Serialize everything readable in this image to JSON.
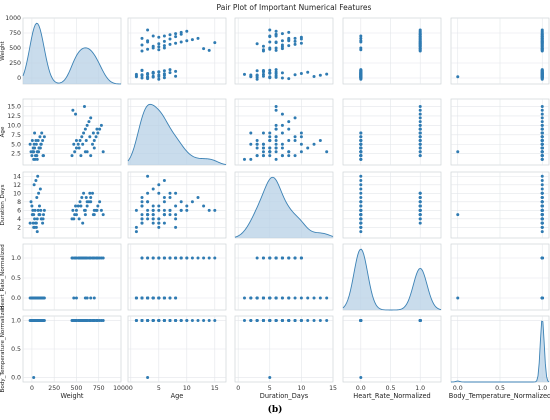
{
  "figure": {
    "title": "Pair Plot of Important Numerical Features",
    "caption": "(b)"
  },
  "colors": {
    "point": "#2f7bb2",
    "kde_line": "#3c82b5",
    "kde_fill": "#b7d0e5"
  },
  "chart_data": {
    "type": "scatter",
    "subtype": "pair-plot",
    "grid": true,
    "diagonal": "kde",
    "variables": [
      {
        "name": "Weight",
        "label": "Weight",
        "range": [
          -100,
          1000
        ],
        "ticks": [
          0,
          250,
          500,
          750,
          1000
        ]
      },
      {
        "name": "Age",
        "label": "Age",
        "range": [
          -0.5,
          17
        ],
        "ticks": [
          0,
          5,
          10,
          15
        ],
        "yticks": [
          2.5,
          5.0,
          7.5,
          10.0,
          12.5,
          15.0
        ]
      },
      {
        "name": "Duration_Days",
        "label": "Duration_Days",
        "range": [
          -0.5,
          15
        ],
        "ticks": [
          0,
          5,
          10,
          15
        ],
        "yticks": [
          2,
          4,
          6,
          8,
          10,
          12,
          14
        ]
      },
      {
        "name": "Heart_Rate_Normalized",
        "label": "Heart_Rate_Normalized",
        "range": [
          -0.3,
          1.35
        ],
        "ticks": [
          0.0,
          0.5,
          1.0
        ],
        "yticks": [
          0.0,
          0.5,
          1.0
        ]
      },
      {
        "name": "Body_Temperature_Normalized",
        "label": "Body_Temperature_Normalized",
        "range": [
          -0.08,
          1.08
        ],
        "ticks": [
          0.0,
          0.5,
          1.0
        ],
        "yticks": [
          0.0,
          0.5,
          1.0
        ]
      }
    ],
    "records": [
      [
        20,
        1,
        2,
        0,
        1
      ],
      [
        40,
        2,
        3,
        0,
        1
      ],
      [
        60,
        3,
        4,
        0,
        1
      ],
      [
        80,
        4,
        5,
        0,
        1
      ],
      [
        100,
        5,
        6,
        0,
        1
      ],
      [
        120,
        6,
        3,
        0,
        1
      ],
      [
        0,
        2,
        7,
        0,
        1
      ],
      [
        10,
        3,
        5,
        0,
        1
      ],
      [
        30,
        4,
        4,
        0,
        1
      ],
      [
        50,
        5,
        2,
        0,
        1
      ],
      [
        70,
        6,
        6,
        0,
        1
      ],
      [
        90,
        7,
        5,
        0,
        1
      ],
      [
        110,
        8,
        4,
        0,
        1
      ],
      [
        130,
        2,
        5,
        0,
        1
      ],
      [
        -10,
        3,
        8,
        0,
        1
      ],
      [
        15,
        4,
        3,
        0,
        1
      ],
      [
        35,
        1,
        6,
        0,
        1
      ],
      [
        55,
        2,
        9,
        0,
        1
      ],
      [
        75,
        3,
        10,
        0,
        1
      ],
      [
        95,
        4,
        11,
        0,
        1
      ],
      [
        25,
        5,
        12,
        0,
        1
      ],
      [
        45,
        6,
        13,
        0,
        1
      ],
      [
        65,
        3,
        14,
        0,
        1
      ],
      [
        85,
        4,
        7,
        0,
        1
      ],
      [
        105,
        5,
        4,
        0,
        1
      ],
      [
        5,
        6,
        5,
        0,
        1
      ],
      [
        125,
        2,
        4,
        0,
        1
      ],
      [
        140,
        7,
        6,
        0,
        1
      ],
      [
        -20,
        5,
        3,
        0,
        1
      ],
      [
        60,
        1,
        1,
        0,
        1
      ],
      [
        30,
        8,
        2,
        0,
        1
      ],
      [
        80,
        4,
        5,
        0,
        1
      ],
      [
        10,
        3,
        6,
        0,
        1
      ],
      [
        50,
        2,
        3,
        0,
        1
      ],
      [
        450,
        2,
        4,
        1,
        1
      ],
      [
        480,
        3,
        5,
        1,
        1
      ],
      [
        500,
        4,
        6,
        1,
        1
      ],
      [
        520,
        5,
        7,
        1,
        1
      ],
      [
        540,
        6,
        8,
        1,
        1
      ],
      [
        560,
        7,
        9,
        1,
        1
      ],
      [
        580,
        8,
        10,
        1,
        1
      ],
      [
        600,
        9,
        6,
        1,
        1
      ],
      [
        620,
        10,
        7,
        1,
        1
      ],
      [
        640,
        11,
        8,
        1,
        1
      ],
      [
        660,
        12,
        9,
        1,
        1
      ],
      [
        680,
        5,
        10,
        1,
        1
      ],
      [
        700,
        6,
        5,
        1,
        1
      ],
      [
        720,
        7,
        6,
        1,
        1
      ],
      [
        740,
        8,
        7,
        1,
        1
      ],
      [
        760,
        9,
        8,
        1,
        1
      ],
      [
        780,
        10,
        6,
        1,
        1
      ],
      [
        800,
        3,
        5,
        1,
        1
      ],
      [
        460,
        14,
        6,
        1,
        1
      ],
      [
        490,
        13,
        7,
        1,
        1
      ],
      [
        530,
        4,
        4,
        1,
        1
      ],
      [
        570,
        5,
        3,
        1,
        1
      ],
      [
        610,
        6,
        9,
        1,
        1
      ],
      [
        650,
        7,
        10,
        1,
        1
      ],
      [
        690,
        8,
        5,
        1,
        1
      ],
      [
        730,
        9,
        6,
        1,
        1
      ],
      [
        590,
        15,
        6,
        1,
        1
      ],
      [
        550,
        2,
        7,
        1,
        1
      ],
      [
        620,
        3,
        8,
        0,
        1
      ],
      [
        700,
        4,
        6,
        0,
        1
      ],
      [
        500,
        6,
        5,
        0,
        1
      ],
      [
        470,
        5,
        4,
        0,
        1
      ],
      [
        660,
        2,
        8,
        0,
        1
      ],
      [
        20,
        3,
        5,
        0,
        0
      ],
      [
        600,
        3,
        5,
        0,
        1
      ]
    ]
  }
}
